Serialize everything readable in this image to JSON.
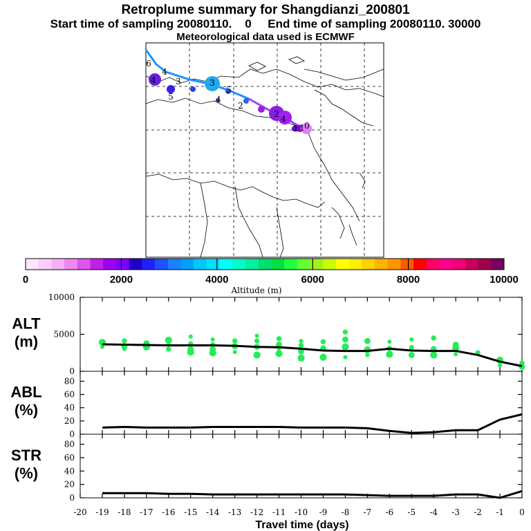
{
  "title": {
    "line1": "Retroplume summary for Shangdianzi_200801",
    "line2": "Start time of sampling 20080110.    0     End time of sampling 20080110. 30000",
    "line3": "Meteorological data used is ECMWF"
  },
  "colorbar": {
    "xlabel": "Altitude (m)",
    "ticks": [
      "0",
      "2000",
      "4000",
      "6000",
      "8000",
      "10000"
    ],
    "colors": [
      "#ffe6ff",
      "#ffccff",
      "#f5b0f5",
      "#ee88ee",
      "#dd55ee",
      "#c020e8",
      "#a000f0",
      "#8000ff",
      "#2000c8",
      "#2020ff",
      "#1e50ff",
      "#1e80ff",
      "#00a0ff",
      "#00c8ff",
      "#00e0ff",
      "#00ffff",
      "#00ffc8",
      "#00f0a0",
      "#00e070",
      "#00e040",
      "#20ff40",
      "#60ff30",
      "#a0f020",
      "#c8ff00",
      "#ffff00",
      "#fff000",
      "#ffd200",
      "#ffb400",
      "#ff9600",
      "#ff5a00",
      "#ff0000",
      "#ff0064",
      "#ff0090",
      "#f0007a",
      "#c8005a",
      "#a00050",
      "#780060"
    ]
  },
  "map": {
    "labels": [
      "6",
      "4",
      "4",
      "3",
      "5",
      "3",
      "5",
      "4",
      "2",
      "2",
      "4",
      "1",
      "2",
      "1",
      "0"
    ]
  },
  "chart_data": [
    {
      "type": "line",
      "name": "ALT",
      "ylabel": "ALT\n(m)",
      "ylabel_lines": [
        "ALT",
        "(m)"
      ],
      "xlabel": "Travel time (days)",
      "x_ticks": [
        "-20",
        "-19",
        "-18",
        "-17",
        "-16",
        "-15",
        "-14",
        "-13",
        "-12",
        "-11",
        "-10",
        "-9",
        "-8",
        "-7",
        "-6",
        "-5",
        "-4",
        "-3",
        "-2",
        "-1",
        "0"
      ],
      "y_ticks": [
        "0",
        "5000",
        "10000"
      ],
      "xlim": [
        -20,
        0
      ],
      "ylim": [
        0,
        10000
      ],
      "series_color": "#000000",
      "marker_color": "#22ee55",
      "x": [
        -19,
        -18,
        -17,
        -16,
        -15,
        -14,
        -13,
        -12,
        -11,
        -10,
        -9,
        -8,
        -7,
        -6,
        -5,
        -4,
        -3,
        -2,
        -1,
        0
      ],
      "y": [
        3650,
        3600,
        3550,
        3500,
        3500,
        3500,
        3450,
        3300,
        3250,
        3050,
        2800,
        2750,
        2750,
        3050,
        2800,
        2750,
        2750,
        2200,
        1300,
        700
      ],
      "scatter": [
        [
          -19,
          3300
        ],
        [
          -19,
          3900
        ],
        [
          -18,
          3400
        ],
        [
          -18,
          4100
        ],
        [
          -18,
          3000
        ],
        [
          -17,
          3300
        ],
        [
          -17,
          3800
        ],
        [
          -16,
          3000
        ],
        [
          -16,
          3600
        ],
        [
          -16,
          4200
        ],
        [
          -15,
          3000
        ],
        [
          -15,
          3700
        ],
        [
          -15,
          4700
        ],
        [
          -15,
          2600
        ],
        [
          -14,
          3000
        ],
        [
          -14,
          3600
        ],
        [
          -14,
          4300
        ],
        [
          -14,
          2500
        ],
        [
          -13,
          3400
        ],
        [
          -13,
          4100
        ],
        [
          -13,
          2600
        ],
        [
          -12,
          2200
        ],
        [
          -12,
          3300
        ],
        [
          -12,
          4100
        ],
        [
          -12,
          4800
        ],
        [
          -11,
          2400
        ],
        [
          -11,
          3600
        ],
        [
          -11,
          4400
        ],
        [
          -11,
          3100
        ],
        [
          -10,
          1800
        ],
        [
          -10,
          2700
        ],
        [
          -10,
          3500
        ],
        [
          -10,
          4100
        ],
        [
          -9,
          1900
        ],
        [
          -9,
          3100
        ],
        [
          -9,
          4000
        ],
        [
          -8,
          1900
        ],
        [
          -8,
          3300
        ],
        [
          -8,
          4300
        ],
        [
          -8,
          5300
        ],
        [
          -7,
          2200
        ],
        [
          -7,
          2900
        ],
        [
          -7,
          4100
        ],
        [
          -6,
          3100
        ],
        [
          -6,
          4000
        ],
        [
          -6,
          2300
        ],
        [
          -5,
          2200
        ],
        [
          -5,
          3200
        ],
        [
          -5,
          4300
        ],
        [
          -4,
          2200
        ],
        [
          -4,
          3000
        ],
        [
          -4,
          4500
        ],
        [
          -3,
          2300
        ],
        [
          -3,
          3100
        ],
        [
          -3,
          3600
        ],
        [
          -2,
          2500
        ],
        [
          -1,
          800
        ],
        [
          -1,
          1500
        ],
        [
          0,
          600
        ],
        [
          0,
          1100
        ]
      ]
    },
    {
      "type": "line",
      "name": "ABL",
      "ylabel": "ABL\n(%)",
      "ylabel_lines": [
        "ABL",
        "(%)"
      ],
      "y_ticks": [
        "0",
        "20",
        "40",
        "60",
        "80"
      ],
      "xlim": [
        -20,
        0
      ],
      "ylim": [
        0,
        95
      ],
      "series_color": "#000000",
      "x": [
        -19,
        -18,
        -17,
        -16,
        -15,
        -14,
        -13,
        -12,
        -11,
        -10,
        -9,
        -8,
        -7,
        -6,
        -5,
        -4,
        -3,
        -2,
        -1,
        0
      ],
      "y": [
        10,
        11,
        10,
        10,
        10,
        11,
        11,
        11,
        11,
        10,
        10,
        10,
        9,
        5,
        2,
        3,
        6,
        6,
        22,
        30
      ]
    },
    {
      "type": "line",
      "name": "STR",
      "ylabel": "STR\n(%)",
      "ylabel_lines": [
        "STR",
        "(%)"
      ],
      "y_ticks": [
        "0",
        "20",
        "40",
        "60",
        "80"
      ],
      "xlim": [
        -20,
        0
      ],
      "ylim": [
        0,
        95
      ],
      "series_color": "#000000",
      "x": [
        -19,
        -18,
        -17,
        -16,
        -15,
        -14,
        -13,
        -12,
        -11,
        -10,
        -9,
        -8,
        -7,
        -6,
        -5,
        -4,
        -3,
        -2,
        -1,
        0
      ],
      "y": [
        7,
        7,
        7,
        6,
        6,
        5,
        5,
        5,
        5,
        5,
        5,
        5,
        4,
        3,
        3,
        3,
        5,
        5,
        0,
        10
      ]
    }
  ]
}
